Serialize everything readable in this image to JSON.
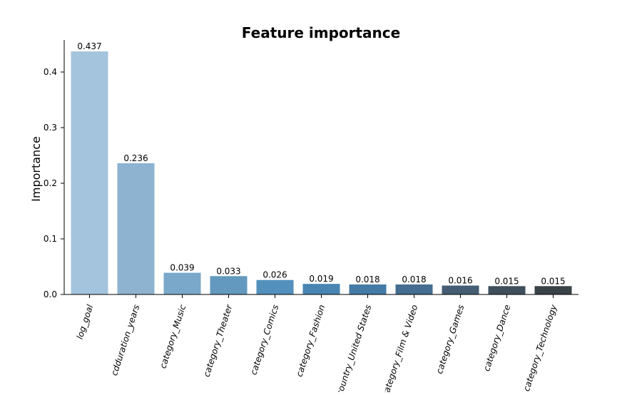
{
  "chart_data": {
    "type": "bar",
    "title": "Feature importance",
    "xlabel": "",
    "ylabel": "Importance",
    "ylim": [
      0,
      0.46
    ],
    "yticks": [
      "0.0",
      "0.1",
      "0.2",
      "0.3",
      "0.4"
    ],
    "categories": [
      "log_goal",
      "cdduration_years",
      "category_Music",
      "category_Theater",
      "category_Comics",
      "category_Fashion",
      "country_United States",
      "category_Film & Video",
      "category_Games",
      "category_Dance",
      "category_Technology"
    ],
    "values": [
      0.437,
      0.236,
      0.039,
      0.033,
      0.026,
      0.019,
      0.018,
      0.018,
      0.016,
      0.015,
      0.015
    ],
    "value_labels": [
      "0.437",
      "0.236",
      "0.039",
      "0.033",
      "0.026",
      "0.019",
      "0.018",
      "0.018",
      "0.016",
      "0.015",
      "0.015"
    ],
    "colors": [
      "#a3c4dc",
      "#8db3d0",
      "#79a8ca",
      "#6399bf",
      "#5490bc",
      "#4885b3",
      "#447ba6",
      "#446d91",
      "#445d73",
      "#404f5c",
      "#394247"
    ],
    "grid": false,
    "legend": "none"
  }
}
